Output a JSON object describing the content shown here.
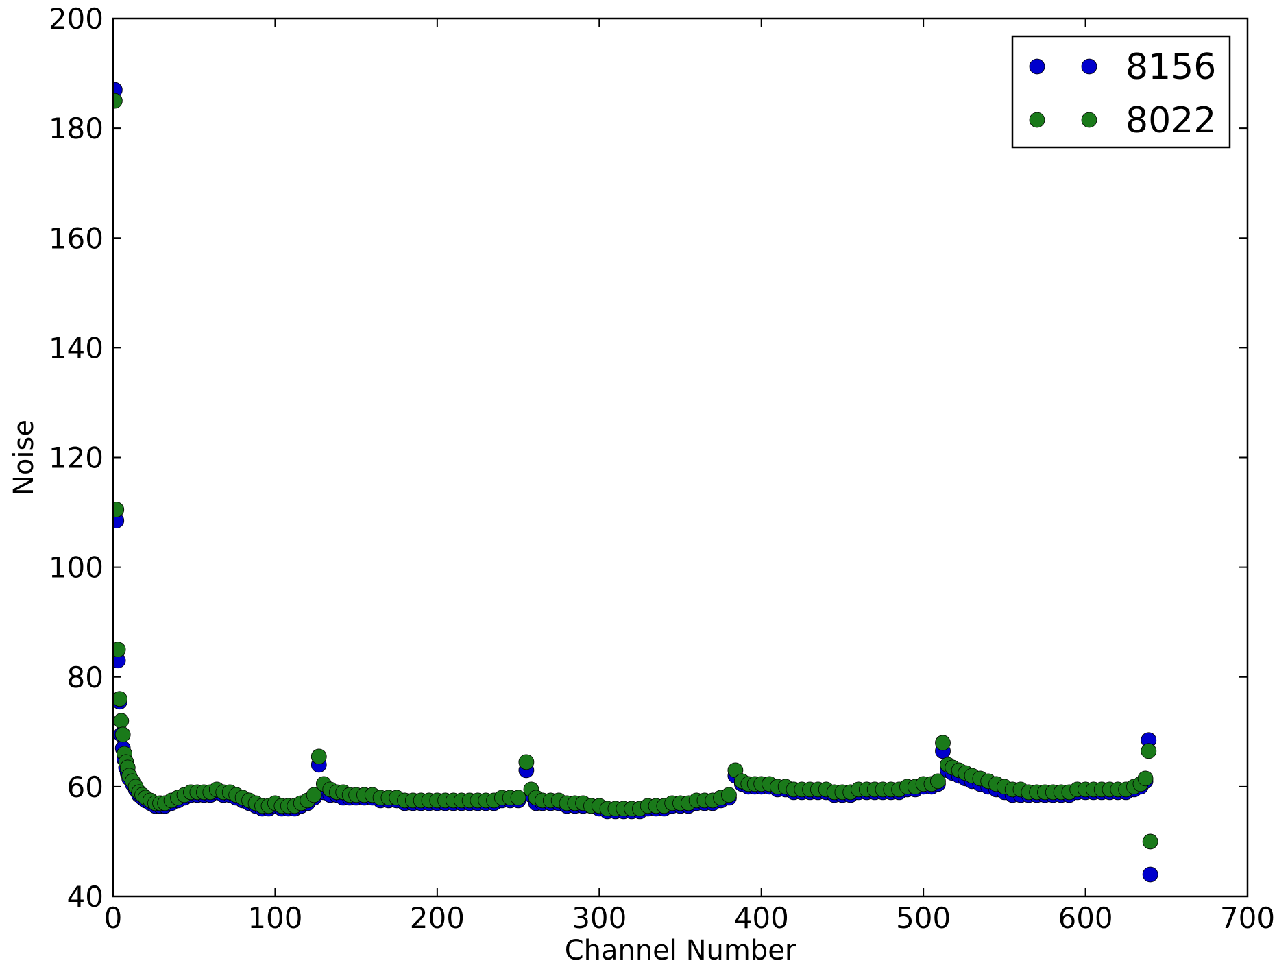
{
  "chart_data": {
    "type": "scatter",
    "title": "",
    "xlabel": "Channel Number",
    "ylabel": "Noise",
    "xlim": [
      0,
      700
    ],
    "ylim": [
      40,
      200
    ],
    "xticks": [
      0,
      100,
      200,
      300,
      400,
      500,
      600,
      700
    ],
    "yticks": [
      40,
      60,
      80,
      100,
      120,
      140,
      160,
      180,
      200
    ],
    "grid": false,
    "legend_position": "top-right",
    "series": [
      {
        "name": "8156",
        "color": "#0000cc",
        "points": [
          [
            1,
            187
          ],
          [
            2,
            108.5
          ],
          [
            3,
            83
          ],
          [
            4,
            75.5
          ],
          [
            5,
            69.5
          ],
          [
            6,
            67
          ],
          [
            7,
            65
          ],
          [
            8,
            63.5
          ],
          [
            9,
            62.5
          ],
          [
            10,
            61.5
          ],
          [
            12,
            60.5
          ],
          [
            14,
            59.5
          ],
          [
            16,
            58.5
          ],
          [
            18,
            58
          ],
          [
            20,
            57.5
          ],
          [
            23,
            57
          ],
          [
            26,
            56.5
          ],
          [
            29,
            56.5
          ],
          [
            32,
            56.5
          ],
          [
            36,
            57
          ],
          [
            40,
            57.5
          ],
          [
            44,
            58
          ],
          [
            48,
            58.5
          ],
          [
            52,
            58.5
          ],
          [
            56,
            58.5
          ],
          [
            60,
            58.5
          ],
          [
            64,
            59
          ],
          [
            68,
            58.5
          ],
          [
            72,
            58.5
          ],
          [
            76,
            58
          ],
          [
            80,
            57.5
          ],
          [
            84,
            57
          ],
          [
            88,
            56.5
          ],
          [
            92,
            56
          ],
          [
            96,
            56
          ],
          [
            100,
            56.5
          ],
          [
            104,
            56
          ],
          [
            108,
            56
          ],
          [
            112,
            56
          ],
          [
            116,
            56.5
          ],
          [
            120,
            57
          ],
          [
            124,
            58
          ],
          [
            127,
            64
          ],
          [
            130,
            59
          ],
          [
            134,
            58.5
          ],
          [
            138,
            58.5
          ],
          [
            142,
            58
          ],
          [
            146,
            58
          ],
          [
            150,
            58
          ],
          [
            155,
            58
          ],
          [
            160,
            58
          ],
          [
            165,
            57.5
          ],
          [
            170,
            57.5
          ],
          [
            175,
            57.5
          ],
          [
            180,
            57
          ],
          [
            185,
            57
          ],
          [
            190,
            57
          ],
          [
            195,
            57
          ],
          [
            200,
            57
          ],
          [
            205,
            57
          ],
          [
            210,
            57
          ],
          [
            215,
            57
          ],
          [
            220,
            57
          ],
          [
            225,
            57
          ],
          [
            230,
            57
          ],
          [
            235,
            57
          ],
          [
            240,
            57.5
          ],
          [
            245,
            57.5
          ],
          [
            250,
            57.5
          ],
          [
            255,
            63
          ],
          [
            258,
            58.5
          ],
          [
            261,
            57
          ],
          [
            265,
            57
          ],
          [
            270,
            57
          ],
          [
            275,
            57
          ],
          [
            280,
            56.5
          ],
          [
            285,
            56.5
          ],
          [
            290,
            56.5
          ],
          [
            295,
            56.5
          ],
          [
            300,
            56
          ],
          [
            305,
            55.5
          ],
          [
            310,
            55.5
          ],
          [
            315,
            55.5
          ],
          [
            320,
            55.5
          ],
          [
            325,
            55.5
          ],
          [
            330,
            56
          ],
          [
            335,
            56
          ],
          [
            340,
            56
          ],
          [
            345,
            56.5
          ],
          [
            350,
            56.5
          ],
          [
            355,
            56.5
          ],
          [
            360,
            57
          ],
          [
            365,
            57
          ],
          [
            370,
            57
          ],
          [
            375,
            57.5
          ],
          [
            380,
            58
          ],
          [
            384,
            62
          ],
          [
            388,
            60.5
          ],
          [
            392,
            60
          ],
          [
            396,
            60
          ],
          [
            400,
            60
          ],
          [
            405,
            60
          ],
          [
            410,
            59.5
          ],
          [
            415,
            59.5
          ],
          [
            420,
            59
          ],
          [
            425,
            59
          ],
          [
            430,
            59
          ],
          [
            435,
            59
          ],
          [
            440,
            59
          ],
          [
            445,
            58.5
          ],
          [
            450,
            58.5
          ],
          [
            455,
            58.5
          ],
          [
            460,
            59
          ],
          [
            465,
            59
          ],
          [
            470,
            59
          ],
          [
            475,
            59
          ],
          [
            480,
            59
          ],
          [
            485,
            59
          ],
          [
            490,
            59.5
          ],
          [
            495,
            59.5
          ],
          [
            500,
            60
          ],
          [
            505,
            60
          ],
          [
            509,
            60.5
          ],
          [
            512,
            66.5
          ],
          [
            515,
            63
          ],
          [
            518,
            62.5
          ],
          [
            522,
            62
          ],
          [
            526,
            61.5
          ],
          [
            530,
            61
          ],
          [
            535,
            60.5
          ],
          [
            540,
            60
          ],
          [
            545,
            59.5
          ],
          [
            550,
            59
          ],
          [
            555,
            58.5
          ],
          [
            560,
            58.5
          ],
          [
            565,
            58.5
          ],
          [
            570,
            58.5
          ],
          [
            575,
            58.5
          ],
          [
            580,
            58.5
          ],
          [
            585,
            58.5
          ],
          [
            590,
            58.5
          ],
          [
            595,
            59
          ],
          [
            600,
            59
          ],
          [
            605,
            59
          ],
          [
            610,
            59
          ],
          [
            615,
            59
          ],
          [
            620,
            59
          ],
          [
            625,
            59
          ],
          [
            630,
            59.5
          ],
          [
            634,
            60
          ],
          [
            637,
            61
          ],
          [
            639,
            68.5
          ],
          [
            640,
            44
          ]
        ]
      },
      {
        "name": "8022",
        "color": "#1a7a1a",
        "points": [
          [
            1,
            185
          ],
          [
            2,
            110.5
          ],
          [
            3,
            85
          ],
          [
            4,
            76
          ],
          [
            5,
            72
          ],
          [
            6,
            69.5
          ],
          [
            7,
            66
          ],
          [
            8,
            64.5
          ],
          [
            9,
            63.5
          ],
          [
            10,
            62
          ],
          [
            12,
            61
          ],
          [
            14,
            60
          ],
          [
            16,
            59
          ],
          [
            18,
            58.5
          ],
          [
            20,
            58
          ],
          [
            23,
            57.5
          ],
          [
            26,
            57
          ],
          [
            29,
            57
          ],
          [
            32,
            57
          ],
          [
            36,
            57.5
          ],
          [
            40,
            58
          ],
          [
            44,
            58.5
          ],
          [
            48,
            59
          ],
          [
            52,
            59
          ],
          [
            56,
            59
          ],
          [
            60,
            59
          ],
          [
            64,
            59.5
          ],
          [
            68,
            59
          ],
          [
            72,
            59
          ],
          [
            76,
            58.5
          ],
          [
            80,
            58
          ],
          [
            84,
            57.5
          ],
          [
            88,
            57
          ],
          [
            92,
            56.5
          ],
          [
            96,
            56.5
          ],
          [
            100,
            57
          ],
          [
            104,
            56.5
          ],
          [
            108,
            56.5
          ],
          [
            112,
            56.5
          ],
          [
            116,
            57
          ],
          [
            120,
            57.5
          ],
          [
            124,
            58.5
          ],
          [
            127,
            65.5
          ],
          [
            130,
            60.5
          ],
          [
            134,
            59.5
          ],
          [
            138,
            59
          ],
          [
            142,
            59
          ],
          [
            146,
            58.5
          ],
          [
            150,
            58.5
          ],
          [
            155,
            58.5
          ],
          [
            160,
            58.5
          ],
          [
            165,
            58
          ],
          [
            170,
            58
          ],
          [
            175,
            58
          ],
          [
            180,
            57.5
          ],
          [
            185,
            57.5
          ],
          [
            190,
            57.5
          ],
          [
            195,
            57.5
          ],
          [
            200,
            57.5
          ],
          [
            205,
            57.5
          ],
          [
            210,
            57.5
          ],
          [
            215,
            57.5
          ],
          [
            220,
            57.5
          ],
          [
            225,
            57.5
          ],
          [
            230,
            57.5
          ],
          [
            235,
            57.5
          ],
          [
            240,
            58
          ],
          [
            245,
            58
          ],
          [
            250,
            58
          ],
          [
            255,
            64.5
          ],
          [
            258,
            59.5
          ],
          [
            261,
            58
          ],
          [
            265,
            57.5
          ],
          [
            270,
            57.5
          ],
          [
            275,
            57.5
          ],
          [
            280,
            57
          ],
          [
            285,
            57
          ],
          [
            290,
            57
          ],
          [
            295,
            56.5
          ],
          [
            300,
            56.5
          ],
          [
            305,
            56
          ],
          [
            310,
            56
          ],
          [
            315,
            56
          ],
          [
            320,
            56
          ],
          [
            325,
            56
          ],
          [
            330,
            56.5
          ],
          [
            335,
            56.5
          ],
          [
            340,
            56.5
          ],
          [
            345,
            57
          ],
          [
            350,
            57
          ],
          [
            355,
            57
          ],
          [
            360,
            57.5
          ],
          [
            365,
            57.5
          ],
          [
            370,
            57.5
          ],
          [
            375,
            58
          ],
          [
            380,
            58.5
          ],
          [
            384,
            63
          ],
          [
            388,
            61
          ],
          [
            392,
            60.5
          ],
          [
            396,
            60.5
          ],
          [
            400,
            60.5
          ],
          [
            405,
            60.5
          ],
          [
            410,
            60
          ],
          [
            415,
            60
          ],
          [
            420,
            59.5
          ],
          [
            425,
            59.5
          ],
          [
            430,
            59.5
          ],
          [
            435,
            59.5
          ],
          [
            440,
            59.5
          ],
          [
            445,
            59
          ],
          [
            450,
            59
          ],
          [
            455,
            59
          ],
          [
            460,
            59.5
          ],
          [
            465,
            59.5
          ],
          [
            470,
            59.5
          ],
          [
            475,
            59.5
          ],
          [
            480,
            59.5
          ],
          [
            485,
            59.5
          ],
          [
            490,
            60
          ],
          [
            495,
            60
          ],
          [
            500,
            60.5
          ],
          [
            505,
            60.5
          ],
          [
            509,
            61
          ],
          [
            512,
            68
          ],
          [
            515,
            64
          ],
          [
            518,
            63.5
          ],
          [
            522,
            63
          ],
          [
            526,
            62.5
          ],
          [
            530,
            62
          ],
          [
            535,
            61.5
          ],
          [
            540,
            61
          ],
          [
            545,
            60.5
          ],
          [
            550,
            60
          ],
          [
            555,
            59.5
          ],
          [
            560,
            59.5
          ],
          [
            565,
            59
          ],
          [
            570,
            59
          ],
          [
            575,
            59
          ],
          [
            580,
            59
          ],
          [
            585,
            59
          ],
          [
            590,
            59
          ],
          [
            595,
            59.5
          ],
          [
            600,
            59.5
          ],
          [
            605,
            59.5
          ],
          [
            610,
            59.5
          ],
          [
            615,
            59.5
          ],
          [
            620,
            59.5
          ],
          [
            625,
            59.5
          ],
          [
            630,
            60
          ],
          [
            634,
            60.5
          ],
          [
            637,
            61.5
          ],
          [
            639,
            66.5
          ],
          [
            640,
            50
          ]
        ]
      }
    ]
  }
}
